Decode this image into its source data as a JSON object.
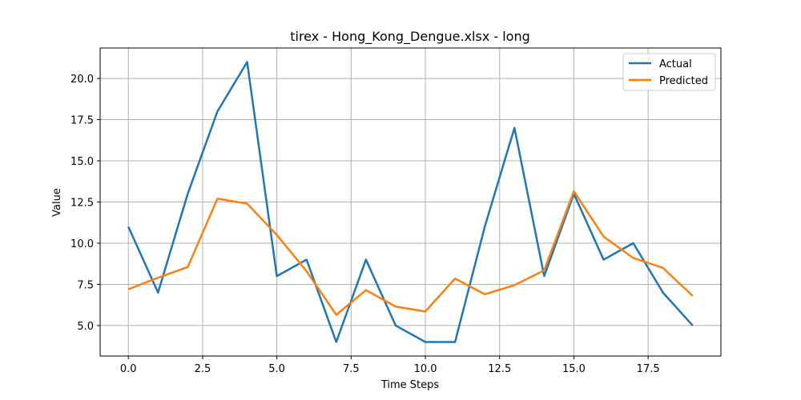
{
  "chart_data": {
    "type": "line",
    "title": "tirex - Hong_Kong_Dengue.xlsx - long",
    "xlabel": "Time Steps",
    "ylabel": "Value",
    "x": [
      0,
      1,
      2,
      3,
      4,
      5,
      6,
      7,
      8,
      9,
      10,
      11,
      12,
      13,
      14,
      15,
      16,
      17,
      18,
      19
    ],
    "xlim": [
      -0.95,
      19.95
    ],
    "ylim": [
      3.15,
      21.85
    ],
    "xticks": [
      0.0,
      2.5,
      5.0,
      7.5,
      10.0,
      12.5,
      15.0,
      17.5
    ],
    "xtick_labels": [
      "0.0",
      "2.5",
      "5.0",
      "7.5",
      "10.0",
      "12.5",
      "15.0",
      "17.5"
    ],
    "yticks": [
      5.0,
      7.5,
      10.0,
      12.5,
      15.0,
      17.5,
      20.0
    ],
    "ytick_labels": [
      "5.0",
      "7.5",
      "10.0",
      "12.5",
      "15.0",
      "17.5",
      "20.0"
    ],
    "grid": true,
    "legend_position": "top-right",
    "series": [
      {
        "name": "Actual",
        "color": "#1f77b4",
        "values": [
          11,
          7,
          13,
          18,
          21,
          8,
          9,
          4,
          9,
          5,
          4,
          4,
          11,
          17,
          8,
          13,
          9,
          10,
          7,
          5
        ]
      },
      {
        "name": "Predicted",
        "color": "#ff7f0e",
        "values": [
          7.2,
          7.9,
          8.55,
          12.7,
          12.4,
          10.5,
          8.3,
          5.65,
          7.15,
          6.15,
          5.85,
          7.85,
          6.9,
          7.45,
          8.35,
          13.15,
          10.4,
          9.1,
          8.5,
          6.8
        ]
      }
    ]
  }
}
